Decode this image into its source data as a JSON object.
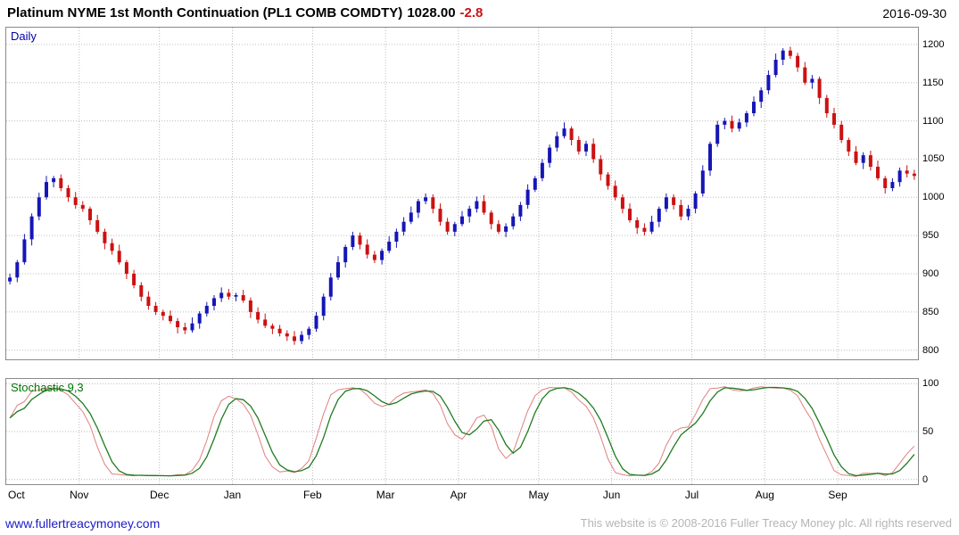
{
  "header": {
    "title": "Platinum NYME 1st Month Continuation (PL1 COMB COMDTY)",
    "last_price": "1028.00",
    "change": "-2.8",
    "date": "2016-09-30"
  },
  "main_panel": {
    "label": "Daily"
  },
  "stochastic_panel": {
    "label": "Stochastic 9,3"
  },
  "footer": {
    "link": "www.fullertreacymoney.com",
    "copyright": "This website is © 2008-2016 Fuller Treacy Money plc. All rights reserved"
  },
  "colors": {
    "up": "#1616b6",
    "down": "#cc1111",
    "stoch_fast": "#e08080",
    "stoch_slow": "#1f7a1f",
    "grid": "#bcbcbc",
    "change": "#cc1111",
    "link": "#1a1ac8"
  },
  "chart_data": [
    {
      "type": "candlestick",
      "title": "Platinum NYME 1st Month Continuation (PL1 COMB COMDTY)",
      "timeframe": "Daily",
      "last_close": 1028.0,
      "change": -2.8,
      "ylim": [
        800,
        1200
      ],
      "y_ticks": [
        1200,
        1150,
        1100,
        1050,
        1000,
        950,
        900,
        850,
        800
      ],
      "x_labels": [
        "Oct",
        "Nov",
        "Dec",
        "Jan",
        "Feb",
        "Mar",
        "Apr",
        "May",
        "Jun",
        "Jul",
        "Aug",
        "Sep"
      ],
      "month_start_indices": [
        0,
        10,
        21,
        31,
        42,
        52,
        62,
        73,
        83,
        94,
        104,
        114
      ],
      "ohlc": [
        [
          890,
          900,
          886,
          895
        ],
        [
          895,
          918,
          889,
          915
        ],
        [
          915,
          952,
          912,
          945
        ],
        [
          945,
          979,
          937,
          975
        ],
        [
          975,
          1006,
          970,
          1000
        ],
        [
          1000,
          1028,
          997,
          1020
        ],
        [
          1020,
          1028,
          1013,
          1025
        ],
        [
          1025,
          1030,
          1008,
          1012
        ],
        [
          1012,
          1016,
          994,
          1000
        ],
        [
          1000,
          1007,
          985,
          990
        ],
        [
          990,
          995,
          981,
          985
        ],
        [
          985,
          988,
          964,
          970
        ],
        [
          970,
          977,
          952,
          955
        ],
        [
          955,
          959,
          932,
          940
        ],
        [
          940,
          946,
          925,
          930
        ],
        [
          930,
          938,
          912,
          915
        ],
        [
          915,
          918,
          893,
          900
        ],
        [
          900,
          905,
          881,
          885
        ],
        [
          885,
          889,
          864,
          870
        ],
        [
          870,
          877,
          853,
          858
        ],
        [
          858,
          863,
          846,
          850
        ],
        [
          850,
          853,
          839,
          845
        ],
        [
          845,
          852,
          835,
          838
        ],
        [
          838,
          842,
          822,
          830
        ],
        [
          830,
          836,
          821,
          826
        ],
        [
          826,
          843,
          823,
          835
        ],
        [
          835,
          851,
          828,
          848
        ],
        [
          848,
          863,
          844,
          858
        ],
        [
          858,
          872,
          852,
          868
        ],
        [
          868,
          882,
          863,
          875
        ],
        [
          875,
          880,
          866,
          870
        ],
        [
          870,
          875,
          864,
          872
        ],
        [
          872,
          879,
          862,
          865
        ],
        [
          865,
          869,
          842,
          850
        ],
        [
          850,
          856,
          835,
          840
        ],
        [
          840,
          848,
          829,
          832
        ],
        [
          832,
          835,
          821,
          828
        ],
        [
          828,
          833,
          818,
          822
        ],
        [
          822,
          826,
          812,
          818
        ],
        [
          818,
          825,
          807,
          812
        ],
        [
          812,
          825,
          808,
          820
        ],
        [
          820,
          831,
          814,
          828
        ],
        [
          828,
          850,
          824,
          845
        ],
        [
          845,
          874,
          839,
          870
        ],
        [
          870,
          901,
          865,
          895
        ],
        [
          895,
          923,
          892,
          915
        ],
        [
          915,
          938,
          908,
          935
        ],
        [
          935,
          955,
          931,
          950
        ],
        [
          950,
          954,
          932,
          938
        ],
        [
          938,
          945,
          920,
          925
        ],
        [
          925,
          930,
          914,
          918
        ],
        [
          918,
          933,
          912,
          930
        ],
        [
          930,
          949,
          927,
          942
        ],
        [
          942,
          959,
          934,
          955
        ],
        [
          955,
          974,
          950,
          968
        ],
        [
          968,
          988,
          965,
          980
        ],
        [
          980,
          998,
          973,
          995
        ],
        [
          995,
          1005,
          991,
          1000
        ],
        [
          1000,
          1004,
          979,
          985
        ],
        [
          985,
          992,
          963,
          968
        ],
        [
          968,
          973,
          951,
          955
        ],
        [
          955,
          968,
          949,
          965
        ],
        [
          965,
          982,
          962,
          975
        ],
        [
          975,
          989,
          967,
          985
        ],
        [
          985,
          1001,
          980,
          995
        ],
        [
          995,
          1003,
          977,
          980
        ],
        [
          980,
          983,
          958,
          965
        ],
        [
          965,
          970,
          952,
          955
        ],
        [
          955,
          966,
          948,
          962
        ],
        [
          962,
          979,
          958,
          975
        ],
        [
          975,
          994,
          969,
          990
        ],
        [
          990,
          1017,
          985,
          1010
        ],
        [
          1010,
          1028,
          1007,
          1025
        ],
        [
          1025,
          1050,
          1021,
          1045
        ],
        [
          1045,
          1069,
          1039,
          1065
        ],
        [
          1065,
          1086,
          1060,
          1080
        ],
        [
          1080,
          1098,
          1077,
          1090
        ],
        [
          1090,
          1093,
          1068,
          1075
        ],
        [
          1075,
          1080,
          1056,
          1060
        ],
        [
          1060,
          1074,
          1054,
          1070
        ],
        [
          1070,
          1077,
          1045,
          1050
        ],
        [
          1050,
          1055,
          1022,
          1030
        ],
        [
          1030,
          1033,
          1010,
          1015
        ],
        [
          1015,
          1022,
          996,
          1000
        ],
        [
          1000,
          1004,
          979,
          985
        ],
        [
          985,
          992,
          967,
          970
        ],
        [
          970,
          974,
          952,
          960
        ],
        [
          960,
          966,
          950,
          955
        ],
        [
          955,
          976,
          952,
          968
        ],
        [
          968,
          988,
          961,
          985
        ],
        [
          985,
          1005,
          981,
          1000
        ],
        [
          1000,
          1004,
          984,
          990
        ],
        [
          990,
          997,
          970,
          975
        ],
        [
          975,
          990,
          970,
          985
        ],
        [
          985,
          1008,
          979,
          1005
        ],
        [
          1005,
          1042,
          1001,
          1035
        ],
        [
          1035,
          1073,
          1028,
          1070
        ],
        [
          1070,
          1100,
          1066,
          1095
        ],
        [
          1095,
          1104,
          1089,
          1100
        ],
        [
          1100,
          1107,
          1085,
          1090
        ],
        [
          1090,
          1103,
          1086,
          1098
        ],
        [
          1098,
          1113,
          1092,
          1110
        ],
        [
          1110,
          1132,
          1106,
          1125
        ],
        [
          1125,
          1144,
          1117,
          1140
        ],
        [
          1140,
          1166,
          1135,
          1160
        ],
        [
          1160,
          1188,
          1157,
          1180
        ],
        [
          1180,
          1195,
          1173,
          1192
        ],
        [
          1192,
          1197,
          1181,
          1185
        ],
        [
          1185,
          1189,
          1164,
          1170
        ],
        [
          1170,
          1177,
          1147,
          1150
        ],
        [
          1150,
          1160,
          1142,
          1155
        ],
        [
          1155,
          1158,
          1122,
          1130
        ],
        [
          1130,
          1134,
          1104,
          1110
        ],
        [
          1110,
          1117,
          1090,
          1095
        ],
        [
          1095,
          1100,
          1071,
          1075
        ],
        [
          1075,
          1078,
          1054,
          1060
        ],
        [
          1060,
          1067,
          1042,
          1045
        ],
        [
          1045,
          1059,
          1037,
          1055
        ],
        [
          1055,
          1061,
          1035,
          1040
        ],
        [
          1040,
          1048,
          1022,
          1025
        ],
        [
          1025,
          1028,
          1005,
          1012
        ],
        [
          1012,
          1025,
          1008,
          1020
        ],
        [
          1020,
          1039,
          1014,
          1035
        ],
        [
          1035,
          1042,
          1026,
          1031
        ],
        [
          1031,
          1036,
          1023,
          1028
        ]
      ]
    },
    {
      "type": "line",
      "title": "Stochastic 9,3",
      "params": {
        "k": 9,
        "d": 3
      },
      "ylim": [
        0,
        100
      ],
      "y_ticks": [
        100,
        50,
        0
      ],
      "series": [
        {
          "name": "stochastic-fast",
          "color": "#e08080",
          "derived": "smoothed %K of ohlc"
        },
        {
          "name": "stochastic-slow",
          "color": "#1f7a1f",
          "derived": "SMA of %K (signal)"
        }
      ]
    }
  ]
}
